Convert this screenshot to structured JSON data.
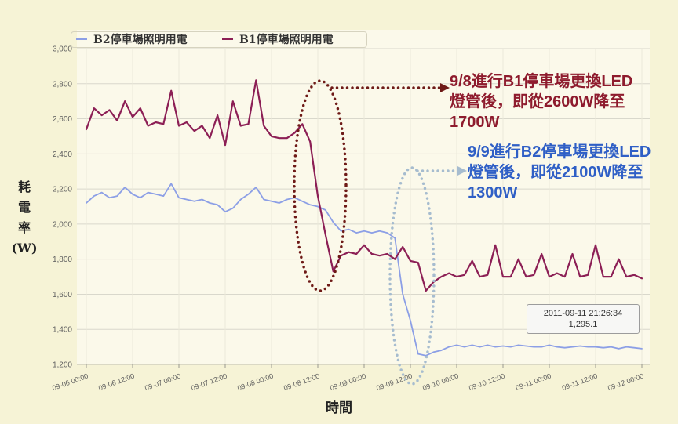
{
  "background_color": "#f6f3d6",
  "chart_data": {
    "type": "line",
    "xlabel": "時間",
    "ylabel": "耗電率(W)",
    "xlim": [
      "09-06 00:00",
      "09-12 00:00"
    ],
    "ylim": [
      1200,
      3000
    ],
    "grid": true,
    "legend_placement": "top-left",
    "y_ticks": [
      "3,000",
      "2,800",
      "2,600",
      "2,400",
      "2,200",
      "2,000",
      "1,800",
      "1,600",
      "1,400",
      "1,200"
    ],
    "x_ticks": [
      "09-06 00:00",
      "09-06 12:00",
      "09-07 00:00",
      "09-07 12:00",
      "09-08 00:00",
      "09-08 12:00",
      "09-09 00:00",
      "09-09 12:00",
      "09-10 00:00",
      "09-10 12:00",
      "09-11 00:00",
      "09-11 12:00",
      "09-12 00:00"
    ],
    "x": [
      "09-06 00:00",
      "09-06 02:00",
      "09-06 04:00",
      "09-06 06:00",
      "09-06 08:00",
      "09-06 10:00",
      "09-06 12:00",
      "09-06 14:00",
      "09-06 16:00",
      "09-06 18:00",
      "09-06 20:00",
      "09-06 22:00",
      "09-07 00:00",
      "09-07 02:00",
      "09-07 04:00",
      "09-07 06:00",
      "09-07 08:00",
      "09-07 10:00",
      "09-07 12:00",
      "09-07 14:00",
      "09-07 16:00",
      "09-07 18:00",
      "09-07 20:00",
      "09-07 22:00",
      "09-08 00:00",
      "09-08 02:00",
      "09-08 04:00",
      "09-08 06:00",
      "09-08 08:00",
      "09-08 10:00",
      "09-08 12:00",
      "09-08 14:00",
      "09-08 16:00",
      "09-08 18:00",
      "09-08 20:00",
      "09-08 22:00",
      "09-09 00:00",
      "09-09 02:00",
      "09-09 04:00",
      "09-09 06:00",
      "09-09 08:00",
      "09-09 10:00",
      "09-09 12:00",
      "09-09 14:00",
      "09-09 16:00",
      "09-09 18:00",
      "09-09 20:00",
      "09-09 22:00",
      "09-10 00:00",
      "09-10 02:00",
      "09-10 04:00",
      "09-10 06:00",
      "09-10 08:00",
      "09-10 10:00",
      "09-10 12:00",
      "09-10 14:00",
      "09-10 16:00",
      "09-10 18:00",
      "09-10 20:00",
      "09-10 22:00",
      "09-11 00:00",
      "09-11 02:00",
      "09-11 04:00",
      "09-11 06:00",
      "09-11 08:00",
      "09-11 10:00",
      "09-11 12:00",
      "09-11 14:00",
      "09-11 16:00",
      "09-11 18:00",
      "09-11 20:00",
      "09-11 22:00",
      "09-12 00:00"
    ],
    "series": [
      {
        "name": "B2停車場照明用電",
        "color": "#8c9fe6",
        "values": [
          2120,
          2160,
          2180,
          2150,
          2160,
          2210,
          2170,
          2150,
          2180,
          2170,
          2160,
          2230,
          2150,
          2140,
          2130,
          2140,
          2120,
          2110,
          2070,
          2090,
          2140,
          2170,
          2210,
          2140,
          2130,
          2120,
          2140,
          2150,
          2130,
          2110,
          2100,
          2080,
          2010,
          1960,
          1970,
          1950,
          1960,
          1950,
          1960,
          1950,
          1920,
          1600,
          1450,
          1260,
          1250,
          1270,
          1280,
          1300,
          1310,
          1300,
          1310,
          1300,
          1310,
          1300,
          1305,
          1300,
          1310,
          1305,
          1300,
          1300,
          1310,
          1300,
          1295,
          1300,
          1305,
          1300,
          1300,
          1295,
          1300,
          1290,
          1300,
          1295,
          1290
        ]
      },
      {
        "name": "B1停車場照明用電",
        "color": "#8c1f55",
        "values": [
          2540,
          2660,
          2620,
          2650,
          2590,
          2700,
          2610,
          2660,
          2560,
          2580,
          2570,
          2760,
          2560,
          2580,
          2530,
          2560,
          2490,
          2620,
          2450,
          2700,
          2560,
          2570,
          2820,
          2560,
          2500,
          2490,
          2490,
          2520,
          2570,
          2470,
          2160,
          1940,
          1730,
          1820,
          1840,
          1830,
          1880,
          1830,
          1820,
          1830,
          1800,
          1870,
          1790,
          1780,
          1620,
          1670,
          1700,
          1720,
          1700,
          1710,
          1790,
          1700,
          1710,
          1880,
          1700,
          1700,
          1800,
          1700,
          1710,
          1830,
          1700,
          1720,
          1700,
          1830,
          1700,
          1710,
          1880,
          1700,
          1700,
          1800,
          1700,
          1710,
          1690
        ]
      }
    ],
    "annotations": [
      {
        "lines": [
          "9/8進行B1停車場更換LED",
          "燈管後，即從2600W降至",
          "1700W"
        ],
        "color": "#8e1b2d",
        "marker_color": "#6e1a17"
      },
      {
        "lines": [
          "9/9進行B2停車場更換LED",
          "燈管後，即從2100W降至",
          "1300W"
        ],
        "color": "#2f5fc6",
        "marker_color": "#a6bccf"
      }
    ],
    "tooltip": {
      "lines": [
        "2011-09-11 21:26:34",
        "1,295.1"
      ]
    }
  }
}
